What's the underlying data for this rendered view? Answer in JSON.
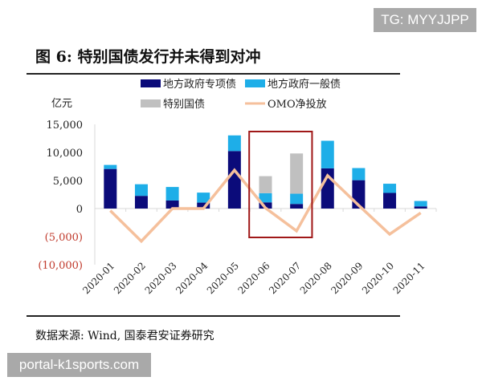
{
  "watermarks": {
    "top": "TG: MYYJJPP",
    "bottom": "portal-k1sports.com"
  },
  "figure_title": "图 6:  特别国债发行并未得到对冲",
  "source": "数据来源:  Wind, 国泰君安证券研究",
  "chart_data": {
    "type": "bar",
    "stacked": true,
    "ylabel": "亿元",
    "ylim": [
      -10000,
      15000
    ],
    "yticks": [
      15000,
      10000,
      5000,
      0,
      -5000,
      -10000
    ],
    "ytick_labels": [
      "15,000",
      "10,000",
      "5,000",
      "0",
      "(5,000)",
      "(10,000)"
    ],
    "negative_tick_color": "#c0392b",
    "categories": [
      "2020-01",
      "2020-02",
      "2020-03",
      "2020-04",
      "2020-05",
      "2020-06",
      "2020-07",
      "2020-08",
      "2020-09",
      "2020-10",
      "2020-11"
    ],
    "series": [
      {
        "name": "地方政府专项债",
        "type": "bar",
        "color": "#0b0b7a",
        "values": [
          7050,
          2260,
          1440,
          1060,
          10240,
          1100,
          820,
          7160,
          5050,
          2790,
          380
        ]
      },
      {
        "name": "地方政府一般债",
        "type": "bar",
        "color": "#1eaee8",
        "values": [
          720,
          2070,
          2400,
          1780,
          2790,
          1640,
          1820,
          4910,
          2160,
          1630,
          970
        ]
      },
      {
        "name": "特别国债",
        "type": "bar",
        "color": "#c0c0c0",
        "values": [
          0,
          0,
          0,
          0,
          0,
          3030,
          7170,
          0,
          0,
          0,
          0
        ]
      },
      {
        "name": "OMO净投放",
        "type": "line",
        "color": "#f5c09c",
        "values": [
          -380,
          -5820,
          0,
          0,
          6830,
          100,
          -3990,
          5870,
          580,
          -4570,
          -770
        ]
      }
    ],
    "highlight": {
      "categories": [
        "2020-06",
        "2020-07"
      ],
      "color": "#a01818"
    },
    "legend": "top",
    "grid": false
  }
}
